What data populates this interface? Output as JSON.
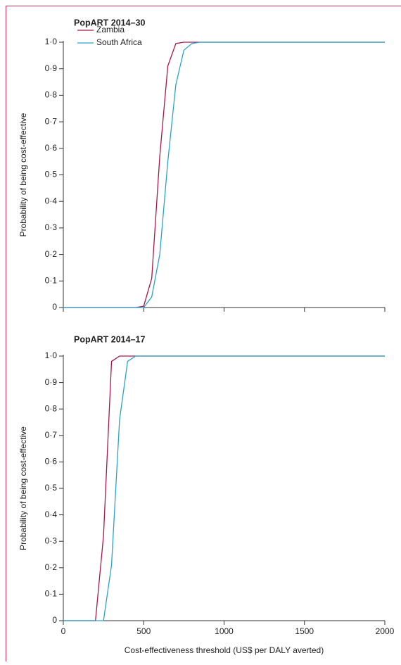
{
  "chart_data": [
    {
      "type": "line",
      "title": "PopART 2014–30",
      "ylabel": "Probability of being cost-effective",
      "xlim": [
        0,
        2000
      ],
      "xticks": [
        0,
        500,
        1000,
        1500,
        2000
      ],
      "xtick_labels": false,
      "ylim": [
        0,
        1
      ],
      "yticks": [
        0,
        {
          "value": 0.1,
          "label": "0·1"
        },
        {
          "value": 0.2,
          "label": "0·2"
        },
        {
          "value": 0.3,
          "label": "0·3"
        },
        {
          "value": 0.4,
          "label": "0·4"
        },
        {
          "value": 0.5,
          "label": "0·5"
        },
        {
          "value": 0.6,
          "label": "0·6"
        },
        {
          "value": 0.7,
          "label": "0·7"
        },
        {
          "value": 0.8,
          "label": "0·8"
        },
        {
          "value": 0.9,
          "label": "0·9"
        },
        {
          "value": 1,
          "label": "1·0"
        }
      ],
      "legend": "upper left",
      "series": [
        {
          "name": "Zambia",
          "color": "#a8174a",
          "x": [
            0,
            450,
            500,
            550,
            600,
            650,
            700,
            750,
            2000
          ],
          "values": [
            0,
            0,
            0.005,
            0.11,
            0.57,
            0.91,
            0.995,
            1,
            1
          ]
        },
        {
          "name": "South Africa",
          "color": "#2aa3c8",
          "x": [
            0,
            500,
            550,
            600,
            650,
            700,
            750,
            800,
            850,
            2000
          ],
          "values": [
            0,
            0,
            0.04,
            0.2,
            0.55,
            0.84,
            0.97,
            0.995,
            1,
            1
          ]
        }
      ]
    },
    {
      "type": "line",
      "title": "PopART 2014–17",
      "ylabel": "Probability of being cost-effective",
      "xlabel": "Cost-effectiveness threshold (US$ per DALY averted)",
      "xlim": [
        0,
        2000
      ],
      "xticks": [
        0,
        500,
        1000,
        1500,
        2000
      ],
      "xtick_labels": true,
      "ylim": [
        0,
        1
      ],
      "yticks": [
        0,
        {
          "value": 0.1,
          "label": "0·1"
        },
        {
          "value": 0.2,
          "label": "0·2"
        },
        {
          "value": 0.3,
          "label": "0·3"
        },
        {
          "value": 0.4,
          "label": "0·4"
        },
        {
          "value": 0.5,
          "label": "0·5"
        },
        {
          "value": 0.6,
          "label": "0·6"
        },
        {
          "value": 0.7,
          "label": "0·7"
        },
        {
          "value": 0.8,
          "label": "0·8"
        },
        {
          "value": 0.9,
          "label": "0·9"
        },
        {
          "value": 1,
          "label": "1·0"
        }
      ],
      "series": [
        {
          "name": "Zambia",
          "color": "#a8174a",
          "x": [
            0,
            200,
            250,
            300,
            350,
            2000
          ],
          "values": [
            0,
            0,
            0.32,
            0.98,
            1,
            1
          ]
        },
        {
          "name": "South Africa",
          "color": "#2aa3c8",
          "x": [
            0,
            250,
            300,
            350,
            400,
            450,
            2000
          ],
          "values": [
            0,
            0,
            0.21,
            0.76,
            0.98,
            1,
            1
          ]
        }
      ]
    }
  ]
}
